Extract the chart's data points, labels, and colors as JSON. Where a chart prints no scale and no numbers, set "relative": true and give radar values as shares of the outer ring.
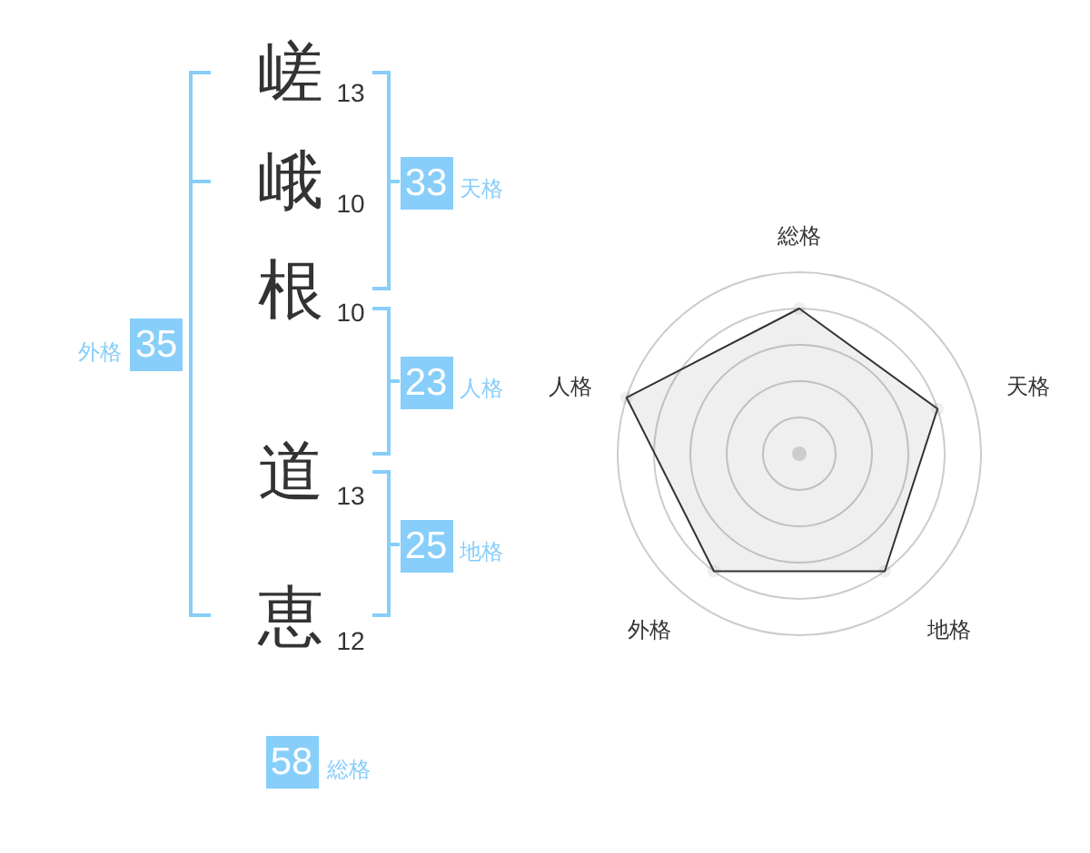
{
  "chart_data": [
    {
      "type": "other",
      "annotations": [
        "嵯",
        "13",
        "峨",
        "10",
        "根",
        "10",
        "道",
        "13",
        "恵",
        "12",
        "33",
        "天格",
        "23",
        "人格",
        "25",
        "地格",
        "35",
        "外格",
        "58",
        "総格"
      ]
    },
    {
      "type": "radar",
      "categories": [
        "総格",
        "天格",
        "地格",
        "外格",
        "人格"
      ],
      "series": [
        {
          "color": "#333333",
          "values": [
            0.8,
            0.8,
            0.8,
            0.8,
            1
          ]
        }
      ],
      "relative": true,
      "marker": "circle",
      "grid": true
    }
  ]
}
